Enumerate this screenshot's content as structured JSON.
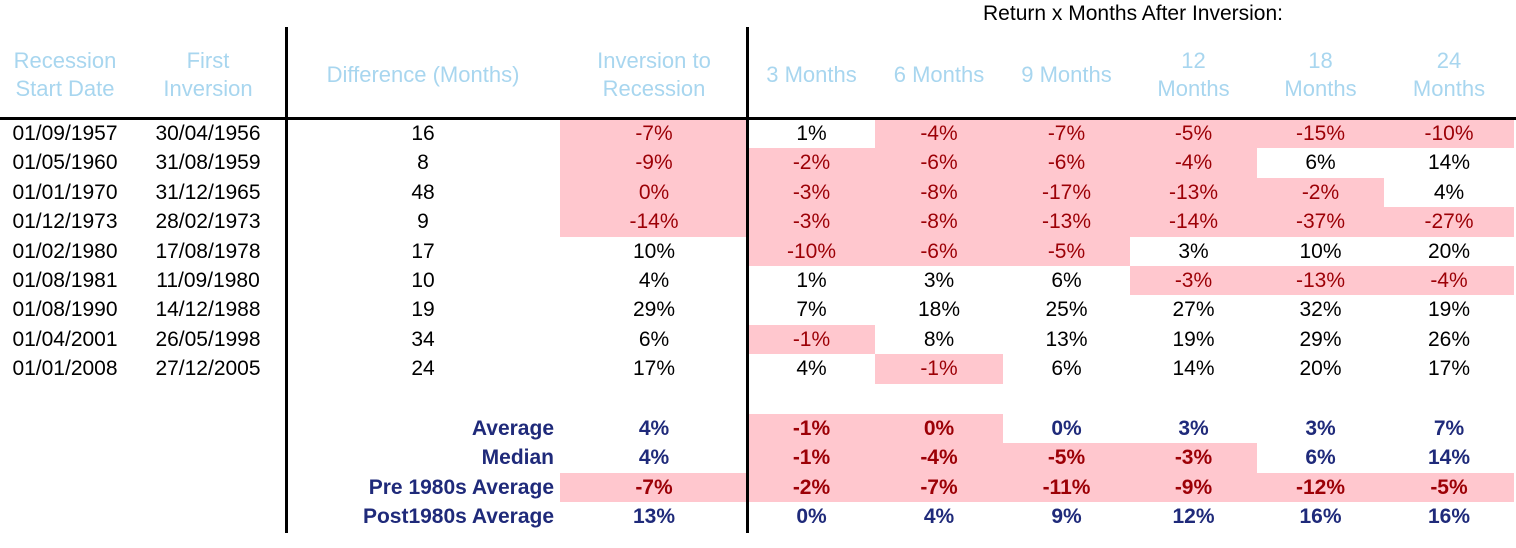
{
  "super_header": "Return x Months After Inversion:",
  "columns": [
    "Recession\nStart Date",
    "First\nInversion",
    "Difference (Months)",
    "Inversion to\nRecession",
    "3 Months",
    "6 Months",
    "9 Months",
    "12\nMonths",
    "18\nMonths",
    "24\nMonths"
  ],
  "rows": [
    [
      "01/09/1957",
      "30/04/1956",
      "16",
      "-7%",
      "1%",
      "-4%",
      "-7%",
      "-5%",
      "-15%",
      "-10%"
    ],
    [
      "01/05/1960",
      "31/08/1959",
      "8",
      "-9%",
      "-2%",
      "-6%",
      "-6%",
      "-4%",
      "6%",
      "14%"
    ],
    [
      "01/01/1970",
      "31/12/1965",
      "48",
      "0%",
      "-3%",
      "-8%",
      "-17%",
      "-13%",
      "-2%",
      "4%"
    ],
    [
      "01/12/1973",
      "28/02/1973",
      "9",
      "-14%",
      "-3%",
      "-8%",
      "-13%",
      "-14%",
      "-37%",
      "-27%"
    ],
    [
      "01/02/1980",
      "17/08/1978",
      "17",
      "10%",
      "-10%",
      "-6%",
      "-5%",
      "3%",
      "10%",
      "20%"
    ],
    [
      "01/08/1981",
      "11/09/1980",
      "10",
      "4%",
      "1%",
      "3%",
      "6%",
      "-3%",
      "-13%",
      "-4%"
    ],
    [
      "01/08/1990",
      "14/12/1988",
      "19",
      "29%",
      "7%",
      "18%",
      "25%",
      "27%",
      "32%",
      "19%"
    ],
    [
      "01/04/2001",
      "26/05/1998",
      "34",
      "6%",
      "-1%",
      "8%",
      "13%",
      "19%",
      "29%",
      "26%"
    ],
    [
      "01/01/2008",
      "27/12/2005",
      "24",
      "17%",
      "4%",
      "-1%",
      "6%",
      "14%",
      "20%",
      "17%"
    ]
  ],
  "highlights": [
    [
      false,
      false,
      false,
      true,
      false,
      true,
      true,
      true,
      true,
      true
    ],
    [
      false,
      false,
      false,
      true,
      true,
      true,
      true,
      true,
      false,
      false
    ],
    [
      false,
      false,
      false,
      true,
      true,
      true,
      true,
      true,
      true,
      false
    ],
    [
      false,
      false,
      false,
      true,
      true,
      true,
      true,
      true,
      true,
      true
    ],
    [
      false,
      false,
      false,
      false,
      true,
      true,
      true,
      false,
      false,
      false
    ],
    [
      false,
      false,
      false,
      false,
      false,
      false,
      false,
      true,
      true,
      true
    ],
    [
      false,
      false,
      false,
      false,
      false,
      false,
      false,
      false,
      false,
      false
    ],
    [
      false,
      false,
      false,
      false,
      true,
      false,
      false,
      false,
      false,
      false
    ],
    [
      false,
      false,
      false,
      false,
      false,
      true,
      false,
      false,
      false,
      false
    ]
  ],
  "summary": [
    {
      "label": "Average",
      "values": [
        "4%",
        "-1%",
        "0%",
        "0%",
        "3%",
        "3%",
        "7%"
      ],
      "highlights": [
        false,
        true,
        true,
        false,
        false,
        false,
        false
      ]
    },
    {
      "label": "Median",
      "values": [
        "4%",
        "-1%",
        "-4%",
        "-5%",
        "-3%",
        "6%",
        "14%"
      ],
      "highlights": [
        false,
        true,
        true,
        true,
        true,
        false,
        false
      ]
    },
    {
      "label": "Pre 1980s Average",
      "values": [
        "-7%",
        "-2%",
        "-7%",
        "-11%",
        "-9%",
        "-12%",
        "-5%"
      ],
      "highlights": [
        true,
        true,
        true,
        true,
        true,
        true,
        true
      ]
    },
    {
      "label": "Post1980s Average",
      "values": [
        "13%",
        "0%",
        "4%",
        "9%",
        "12%",
        "16%",
        "16%"
      ],
      "highlights": [
        false,
        false,
        false,
        false,
        false,
        false,
        false
      ]
    }
  ],
  "colors": {
    "header": "#a8d6ef",
    "negative_fill": "#ffc7ce",
    "negative_text": "#9c0006",
    "summary_text": "#1f2a7a"
  }
}
